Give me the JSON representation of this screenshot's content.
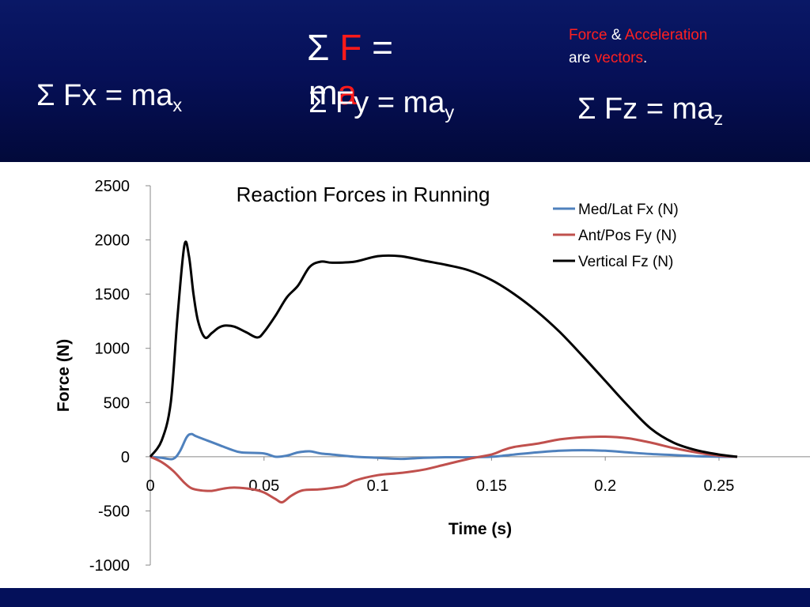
{
  "header": {
    "eq_main": {
      "sigma": "Σ",
      "f": "F",
      "equals": "=",
      "m": "m",
      "a": "a"
    },
    "eq_fx": {
      "text": "Σ Fx = ma",
      "sub": "x"
    },
    "eq_fy": {
      "text": "Σ Fy = ma",
      "sub": "y"
    },
    "eq_fz": {
      "text": "Σ Fz = ma",
      "sub": "z"
    },
    "note": {
      "force": "Force",
      "amp": "&",
      "acceleration": "Acceleration",
      "are": "are",
      "vectors": "vectors",
      "period": "."
    }
  },
  "chart_data": {
    "type": "line",
    "title": "Reaction Forces in Running",
    "xlabel": "Time (s)",
    "ylabel": "Force (N)",
    "xlim": [
      0,
      0.29
    ],
    "ylim": [
      -1000,
      2500
    ],
    "x_ticks": [
      "0",
      "0.05",
      "0.1",
      "0.15",
      "0.2",
      "0.25"
    ],
    "y_ticks": [
      "2500",
      "2000",
      "1500",
      "1000",
      "500",
      "0",
      "-500",
      "-1000"
    ],
    "grid": false,
    "legend": "top-right",
    "series": [
      {
        "name": "Med/Lat Fx (N)",
        "color": "#4f81bd",
        "points": [
          [
            0,
            0
          ],
          [
            0.005,
            -10
          ],
          [
            0.01,
            -20
          ],
          [
            0.013,
            50
          ],
          [
            0.016,
            180
          ],
          [
            0.018,
            210
          ],
          [
            0.02,
            190
          ],
          [
            0.025,
            150
          ],
          [
            0.03,
            110
          ],
          [
            0.035,
            70
          ],
          [
            0.04,
            40
          ],
          [
            0.05,
            30
          ],
          [
            0.055,
            0
          ],
          [
            0.06,
            10
          ],
          [
            0.065,
            40
          ],
          [
            0.07,
            50
          ],
          [
            0.075,
            30
          ],
          [
            0.08,
            20
          ],
          [
            0.09,
            0
          ],
          [
            0.1,
            -10
          ],
          [
            0.11,
            -20
          ],
          [
            0.12,
            -10
          ],
          [
            0.13,
            -5
          ],
          [
            0.14,
            -5
          ],
          [
            0.15,
            0
          ],
          [
            0.16,
            20
          ],
          [
            0.17,
            40
          ],
          [
            0.18,
            55
          ],
          [
            0.19,
            60
          ],
          [
            0.2,
            55
          ],
          [
            0.21,
            40
          ],
          [
            0.22,
            25
          ],
          [
            0.23,
            15
          ],
          [
            0.24,
            5
          ],
          [
            0.25,
            0
          ],
          [
            0.258,
            0
          ]
        ]
      },
      {
        "name": "Ant/Pos Fy (N)",
        "color": "#c0504d",
        "points": [
          [
            0,
            0
          ],
          [
            0.005,
            -50
          ],
          [
            0.01,
            -130
          ],
          [
            0.015,
            -240
          ],
          [
            0.018,
            -290
          ],
          [
            0.022,
            -310
          ],
          [
            0.027,
            -315
          ],
          [
            0.032,
            -295
          ],
          [
            0.037,
            -285
          ],
          [
            0.045,
            -300
          ],
          [
            0.05,
            -330
          ],
          [
            0.055,
            -390
          ],
          [
            0.058,
            -420
          ],
          [
            0.062,
            -360
          ],
          [
            0.067,
            -310
          ],
          [
            0.075,
            -300
          ],
          [
            0.085,
            -270
          ],
          [
            0.09,
            -220
          ],
          [
            0.1,
            -170
          ],
          [
            0.11,
            -150
          ],
          [
            0.12,
            -120
          ],
          [
            0.13,
            -70
          ],
          [
            0.14,
            -20
          ],
          [
            0.15,
            20
          ],
          [
            0.155,
            60
          ],
          [
            0.16,
            90
          ],
          [
            0.17,
            120
          ],
          [
            0.18,
            160
          ],
          [
            0.19,
            180
          ],
          [
            0.2,
            185
          ],
          [
            0.21,
            170
          ],
          [
            0.22,
            130
          ],
          [
            0.23,
            80
          ],
          [
            0.24,
            40
          ],
          [
            0.25,
            10
          ],
          [
            0.258,
            0
          ]
        ]
      },
      {
        "name": "Vertical Fz (N)",
        "color": "#000000",
        "points": [
          [
            0,
            0
          ],
          [
            0.005,
            150
          ],
          [
            0.009,
            500
          ],
          [
            0.012,
            1300
          ],
          [
            0.015,
            1950
          ],
          [
            0.017,
            1850
          ],
          [
            0.019,
            1500
          ],
          [
            0.021,
            1250
          ],
          [
            0.024,
            1100
          ],
          [
            0.027,
            1140
          ],
          [
            0.03,
            1190
          ],
          [
            0.033,
            1210
          ],
          [
            0.037,
            1200
          ],
          [
            0.042,
            1150
          ],
          [
            0.047,
            1100
          ],
          [
            0.05,
            1150
          ],
          [
            0.055,
            1300
          ],
          [
            0.06,
            1470
          ],
          [
            0.065,
            1580
          ],
          [
            0.07,
            1750
          ],
          [
            0.075,
            1800
          ],
          [
            0.08,
            1790
          ],
          [
            0.09,
            1800
          ],
          [
            0.1,
            1850
          ],
          [
            0.11,
            1850
          ],
          [
            0.12,
            1810
          ],
          [
            0.13,
            1770
          ],
          [
            0.14,
            1720
          ],
          [
            0.15,
            1630
          ],
          [
            0.16,
            1500
          ],
          [
            0.17,
            1340
          ],
          [
            0.18,
            1150
          ],
          [
            0.19,
            930
          ],
          [
            0.2,
            700
          ],
          [
            0.21,
            470
          ],
          [
            0.22,
            260
          ],
          [
            0.23,
            130
          ],
          [
            0.24,
            60
          ],
          [
            0.25,
            20
          ],
          [
            0.258,
            0
          ]
        ]
      }
    ]
  }
}
